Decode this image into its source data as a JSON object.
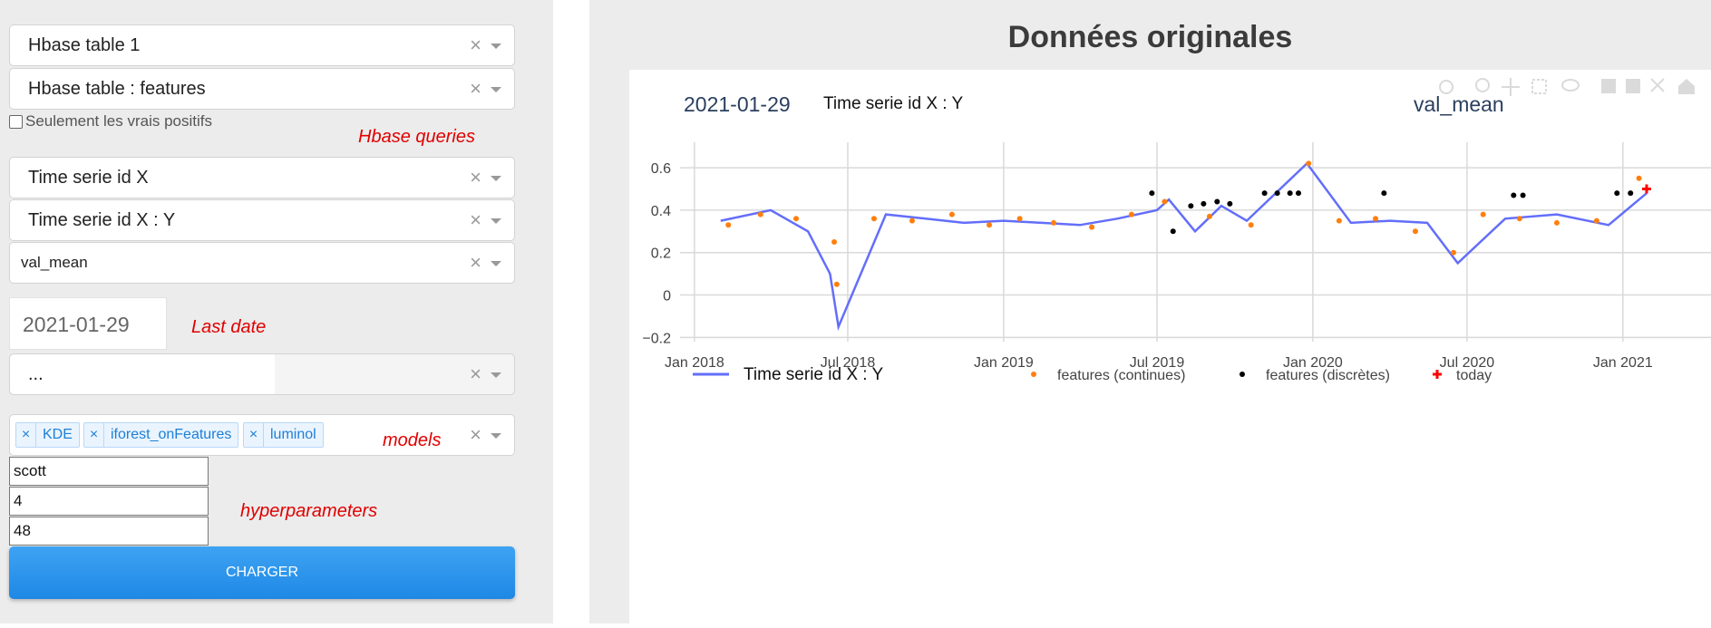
{
  "filters": {
    "hbase_table": "Hbase table 1",
    "hbase_features": "Hbase table : features",
    "true_positives_label": "Seulement les vrais positifs",
    "time_serie_id": "Time serie id X",
    "time_serie_full": "Time serie id X : Y",
    "variable": "val_mean",
    "last_date": "2021-01-29",
    "dots_value": "...",
    "clear_glyph": "×"
  },
  "annotations": {
    "hbase_queries": "Hbase queries",
    "last_date": "Last date",
    "models": "models",
    "hyperparameters": "hyperparameters"
  },
  "models": {
    "tags": [
      "KDE",
      "iforest_onFeatures",
      "luminol"
    ]
  },
  "hyperparameters": {
    "values": [
      "scott",
      "4",
      "48"
    ]
  },
  "actions": {
    "load_label": "CHARGER"
  },
  "chart": {
    "heading": "Données originales",
    "date_label": "2021-01-29",
    "series_label": "Time serie id X : Y",
    "variable_label": "val_mean"
  },
  "chart_data": {
    "type": "line",
    "title": "Données originales",
    "x_range": [
      "2017-12-15",
      "2021-04-15"
    ],
    "ylim": [
      -0.22,
      0.72
    ],
    "yticks": [
      "0.6",
      "0.4",
      "0.2",
      "0",
      "−0.2"
    ],
    "ytick_values": [
      0.6,
      0.4,
      0.2,
      0,
      -0.2
    ],
    "xticks": [
      "Jan 2018",
      "Jul 2018",
      "Jan 2019",
      "Jul 2019",
      "Jan 2020",
      "Jul 2020",
      "Jan 2021"
    ],
    "xtick_dates": [
      "2018-01-01",
      "2018-07-01",
      "2019-01-01",
      "2019-07-01",
      "2020-01-01",
      "2020-07-01",
      "2021-01-01"
    ],
    "grid": true,
    "legend_position": "bottom",
    "series": [
      {
        "name": "Time serie id X : Y",
        "kind": "line",
        "color": "#636efa",
        "x": [
          "2018-02-01",
          "2018-04-01",
          "2018-05-15",
          "2018-06-10",
          "2018-06-20",
          "2018-08-15",
          "2018-10-01",
          "2018-11-15",
          "2019-01-01",
          "2019-02-15",
          "2019-04-01",
          "2019-05-15",
          "2019-07-01",
          "2019-07-15",
          "2019-08-15",
          "2019-09-15",
          "2019-10-15",
          "2019-12-25",
          "2020-02-15",
          "2020-04-01",
          "2020-05-15",
          "2020-06-20",
          "2020-08-15",
          "2020-10-15",
          "2020-12-15",
          "2021-01-29"
        ],
        "y": [
          0.35,
          0.4,
          0.3,
          0.1,
          -0.15,
          0.38,
          0.36,
          0.34,
          0.35,
          0.34,
          0.33,
          0.36,
          0.4,
          0.45,
          0.3,
          0.42,
          0.35,
          0.62,
          0.34,
          0.35,
          0.34,
          0.15,
          0.36,
          0.38,
          0.33,
          0.48
        ]
      },
      {
        "name": "features (continues)",
        "kind": "markers",
        "color": "#ff7f0e",
        "x": [
          "2018-02-10",
          "2018-03-20",
          "2018-05-01",
          "2018-06-15",
          "2018-06-18",
          "2018-08-01",
          "2018-09-15",
          "2018-11-01",
          "2018-12-15",
          "2019-01-20",
          "2019-03-01",
          "2019-04-15",
          "2019-06-01",
          "2019-07-10",
          "2019-09-01",
          "2019-10-20",
          "2019-12-27",
          "2020-02-01",
          "2020-03-15",
          "2020-05-01",
          "2020-06-15",
          "2020-07-20",
          "2020-09-01",
          "2020-10-15",
          "2020-12-01",
          "2021-01-20"
        ],
        "y": [
          0.33,
          0.38,
          0.36,
          0.25,
          0.05,
          0.36,
          0.35,
          0.38,
          0.33,
          0.36,
          0.34,
          0.32,
          0.38,
          0.44,
          0.37,
          0.33,
          0.62,
          0.35,
          0.36,
          0.3,
          0.2,
          0.38,
          0.36,
          0.34,
          0.35,
          0.55
        ]
      },
      {
        "name": "features (discrètes)",
        "kind": "markers",
        "color": "#000000",
        "x": [
          "2019-06-25",
          "2019-07-20",
          "2019-08-10",
          "2019-08-25",
          "2019-09-10",
          "2019-09-25",
          "2019-11-05",
          "2019-11-20",
          "2019-12-05",
          "2019-12-15",
          "2020-03-25",
          "2020-08-25",
          "2020-09-05",
          "2020-12-25",
          "2021-01-10"
        ],
        "y": [
          0.48,
          0.3,
          0.42,
          0.43,
          0.44,
          0.43,
          0.48,
          0.48,
          0.48,
          0.48,
          0.48,
          0.47,
          0.47,
          0.48,
          0.48
        ]
      },
      {
        "name": "today",
        "kind": "markers",
        "color": "#ff0000",
        "x": [
          "2021-01-29"
        ],
        "y": [
          0.5
        ]
      }
    ]
  }
}
